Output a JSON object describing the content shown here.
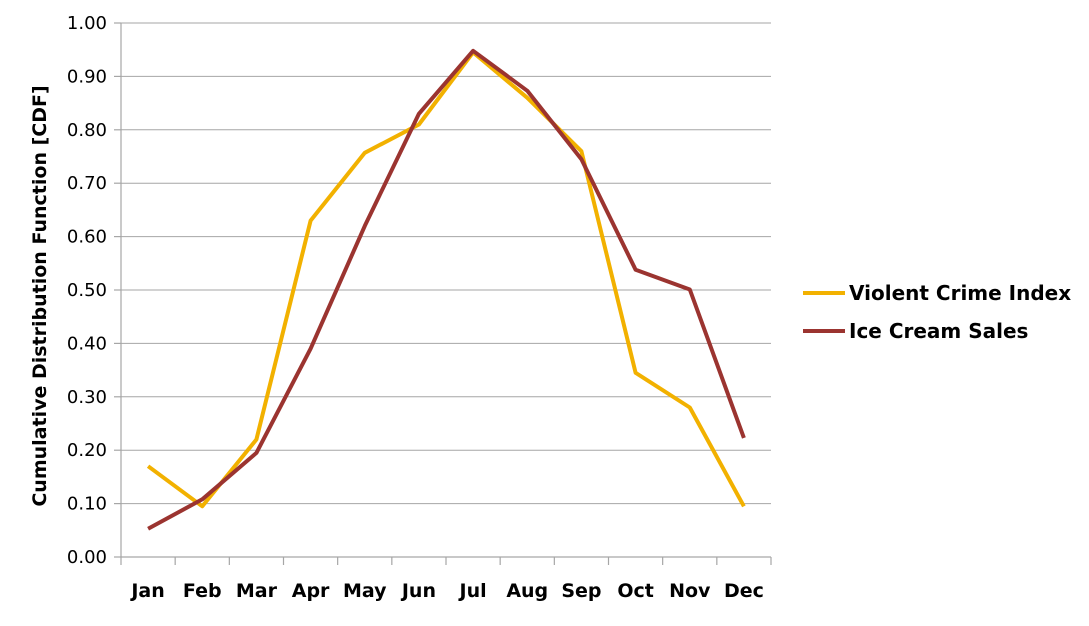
{
  "chart_data": {
    "type": "line",
    "categories": [
      "Jan",
      "Feb",
      "Mar",
      "Apr",
      "May",
      "Jun",
      "Jul",
      "Aug",
      "Sep",
      "Oct",
      "Nov",
      "Dec"
    ],
    "series": [
      {
        "name": "Violent Crime Index",
        "color": "#f2b100",
        "values": [
          0.17,
          0.095,
          0.22,
          0.63,
          0.757,
          0.81,
          0.945,
          0.86,
          0.76,
          0.345,
          0.28,
          0.095
        ]
      },
      {
        "name": "Ice Cream Sales",
        "color": "#9b3430",
        "values": [
          0.053,
          0.108,
          0.195,
          0.39,
          0.62,
          0.83,
          0.948,
          0.873,
          0.745,
          0.538,
          0.501,
          0.223
        ]
      }
    ],
    "title": "",
    "xlabel": "",
    "ylabel": "Cumulative Distribution Function [CDF]",
    "ylim": [
      0,
      1
    ],
    "yticks": [
      "0.00",
      "0.10",
      "0.20",
      "0.30",
      "0.40",
      "0.50",
      "0.60",
      "0.70",
      "0.80",
      "0.90",
      "1.00"
    ],
    "grid": "horizontal",
    "legend_position": "right"
  }
}
